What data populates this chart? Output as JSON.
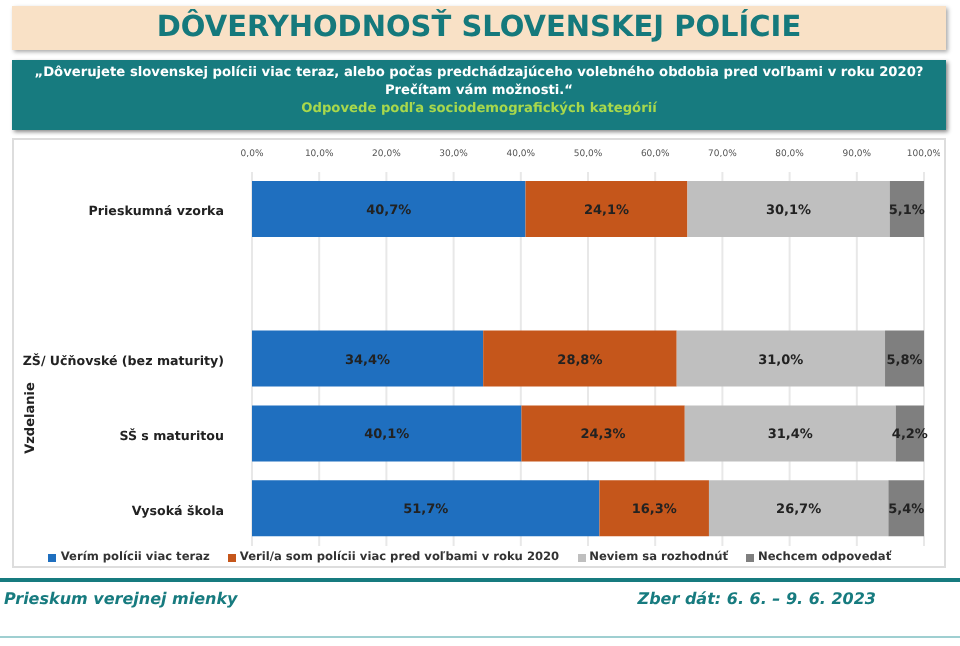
{
  "chart_data": {
    "type": "bar",
    "orientation": "horizontal",
    "stacked": true,
    "title": "DÔVERYHODNOSŤ SLOVENSKEJ POLÍCIE",
    "subtitle": "„Dôverujete slovenskej polícii viac teraz, alebo počas predchádzajúceho volebného obdobia pred voľbami v roku 2020? Prečítam vám možnosti.“",
    "annotations": [
      "Odpovede podľa sociodemografických kategórií",
      "Vzdelanie",
      "Prieskum verejnej mienky",
      "Zber dát: 6. 6. – 9. 6. 2023"
    ],
    "categories": [
      "Prieskumná vzorka",
      null,
      "ZŠ/ Učňovské (bez maturity)",
      "SŠ s maturitou",
      "Vysoká škola"
    ],
    "series": [
      {
        "name": "Verím polícii viac teraz",
        "color": "#1f6fbf",
        "values": [
          40.7,
          null,
          34.4,
          40.1,
          51.7
        ],
        "value_labels": [
          "40,7%",
          null,
          "34,4%",
          "40,1%",
          "51,7%"
        ]
      },
      {
        "name": "Veril/a som polícii viac pred voľbami v roku 2020",
        "color": "#c5561b",
        "values": [
          24.1,
          null,
          28.8,
          24.3,
          16.3
        ],
        "value_labels": [
          "24,1%",
          null,
          "28,8%",
          "24,3%",
          "16,3%"
        ]
      },
      {
        "name": "Neviem sa rozhodnúť",
        "color": "#bfbfbf",
        "values": [
          30.1,
          null,
          31.0,
          31.4,
          26.7
        ],
        "value_labels": [
          "30,1%",
          null,
          "31,0%",
          "31,4%",
          "26,7%"
        ]
      },
      {
        "name": "Nechcem odpovedať",
        "color": "#7f7f7f",
        "values": [
          5.1,
          null,
          5.8,
          4.2,
          5.4
        ],
        "value_labels": [
          "5,1%",
          null,
          "5,8%",
          "4,2%",
          "5,4%"
        ]
      }
    ],
    "xlim": [
      0,
      100
    ],
    "xticks": [
      {
        "value": 0,
        "label": "0,0%"
      },
      {
        "value": 10,
        "label": "10,0%"
      },
      {
        "value": 20,
        "label": "20,0%"
      },
      {
        "value": 30,
        "label": "30,0%"
      },
      {
        "value": 40,
        "label": "40,0%"
      },
      {
        "value": 50,
        "label": "50,0%"
      },
      {
        "value": 60,
        "label": "60,0%"
      },
      {
        "value": 70,
        "label": "70,0%"
      },
      {
        "value": 80,
        "label": "80,0%"
      },
      {
        "value": 90,
        "label": "90,0%"
      },
      {
        "value": 100,
        "label": "100,0%"
      }
    ],
    "grid": "x",
    "legend": "bottom"
  }
}
